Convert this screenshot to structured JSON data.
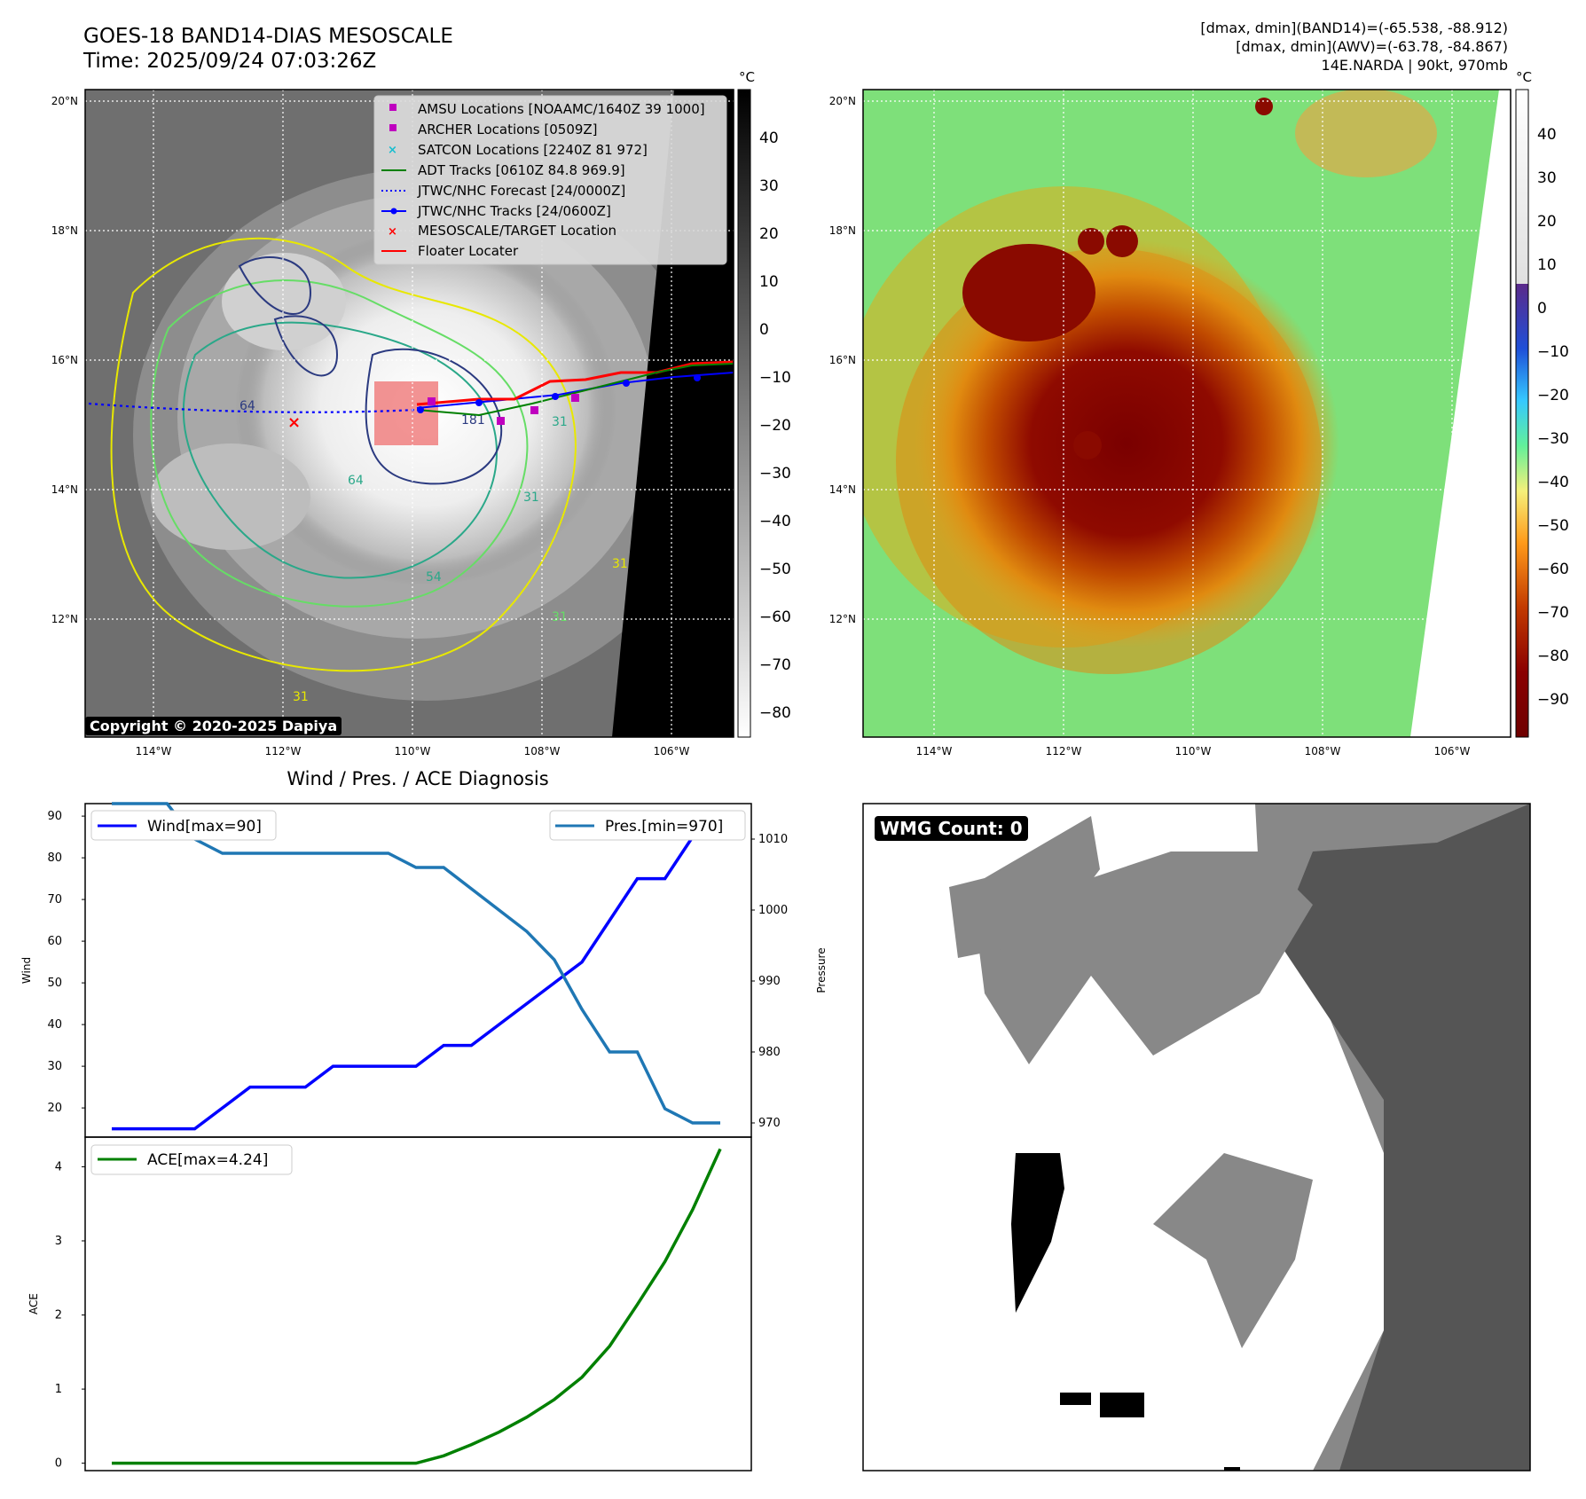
{
  "header": {
    "title_line1": "GOES-18 BAND14-DIAS MESOSCALE",
    "title_line2": "Time: 2025/09/24 07:03:26Z",
    "stats_line1": "[dmax, dmin](BAND14)=(-65.538, -88.912)",
    "stats_line2": "[dmax, dmin](AWV)=(-63.78, -84.867)",
    "stats_line3": "14E.NARDA | 90kt, 970mb"
  },
  "map_panel_ir": {
    "lat_labels": [
      "20°N",
      "18°N",
      "16°N",
      "14°N",
      "12°N"
    ],
    "lon_labels": [
      "114°W",
      "112°W",
      "110°W",
      "108°W",
      "106°W"
    ],
    "colorbar_unit": "°C",
    "colorbar_ticks": [
      "40",
      "30",
      "20",
      "10",
      "0",
      "−10",
      "−20",
      "−30",
      "−40",
      "−50",
      "−60",
      "−70",
      "−80"
    ],
    "copyright": "Copyright © 2020-2025 Dapiya",
    "contour_labels": [
      "64",
      "64",
      "31",
      "31",
      "31",
      "31",
      "31",
      "181",
      "54"
    ],
    "legend": [
      {
        "label": "AMSU Locations [NOAAMC/1640Z 39 1000]",
        "marker": "square",
        "color": "#bf00bf"
      },
      {
        "label": "ARCHER Locations [0509Z]",
        "marker": "square",
        "color": "#bf00bf"
      },
      {
        "label": "SATCON Locations [2240Z 81 972]",
        "marker": "x",
        "color": "#17becf"
      },
      {
        "label": "ADT Tracks [0610Z 84.8 969.9]",
        "marker": "line",
        "color": "#008000"
      },
      {
        "label": "JTWC/NHC Forecast [24/0000Z]",
        "marker": "dotted",
        "color": "#0000ff"
      },
      {
        "label": "JTWC/NHC Tracks [24/0600Z]",
        "marker": "line-dot",
        "color": "#0000ff"
      },
      {
        "label": "MESOSCALE/TARGET Location",
        "marker": "x",
        "color": "#ff0000"
      },
      {
        "label": "Floater Locater",
        "marker": "line",
        "color": "#ff0000"
      }
    ]
  },
  "map_panel_awv": {
    "lat_labels": [
      "20°N",
      "18°N",
      "16°N",
      "14°N",
      "12°N"
    ],
    "lon_labels": [
      "114°W",
      "112°W",
      "110°W",
      "108°W",
      "106°W"
    ],
    "colorbar_unit": "°C",
    "colorbar_ticks": [
      "40",
      "30",
      "20",
      "10",
      "0",
      "−10",
      "−20",
      "−30",
      "−40",
      "−50",
      "−60",
      "−70",
      "−80",
      "−90"
    ]
  },
  "wmg_panel": {
    "badge": "WMG Count: 0"
  },
  "colors": {
    "wind": "#0000ff",
    "pressure": "#1f77b4",
    "ace": "#008000",
    "legend_marker": "#bf00bf",
    "target": "#ff0000"
  },
  "chart_data": [
    {
      "type": "line",
      "title": "Wind / Pres. / ACE Diagnosis",
      "ylabel": "Wind",
      "ylabel_right": "Pressure",
      "ylim": [
        13,
        93
      ],
      "ylim_right": [
        968,
        1015
      ],
      "yticks": [
        20,
        30,
        40,
        50,
        60,
        70,
        80,
        90
      ],
      "yticks_right": [
        970,
        980,
        990,
        1000,
        1010
      ],
      "x": [
        0,
        1,
        2,
        3,
        4,
        5,
        6,
        7,
        8,
        9,
        10,
        11,
        12,
        13,
        14,
        15,
        16,
        17,
        18,
        19,
        20,
        21,
        22
      ],
      "series": [
        {
          "name": "Wind[max=90]",
          "axis": "left",
          "values": [
            15,
            15,
            15,
            15,
            20,
            25,
            25,
            25,
            30,
            30,
            30,
            30,
            35,
            35,
            40,
            45,
            50,
            55,
            65,
            75,
            75,
            85,
            90
          ]
        },
        {
          "name": "Pres.[min=970]",
          "axis": "right",
          "values": [
            1015,
            1015,
            1015,
            1010,
            1008,
            1008,
            1008,
            1008,
            1008,
            1008,
            1008,
            1006,
            1006,
            1003,
            1000,
            997,
            993,
            986,
            980,
            980,
            972,
            970,
            970
          ]
        }
      ]
    },
    {
      "type": "line",
      "ylabel": "ACE",
      "ylim": [
        -0.1,
        4.4
      ],
      "yticks": [
        0,
        1,
        2,
        3,
        4
      ],
      "x": [
        0,
        1,
        2,
        3,
        4,
        5,
        6,
        7,
        8,
        9,
        10,
        11,
        12,
        13,
        14,
        15,
        16,
        17,
        18,
        19,
        20,
        21,
        22
      ],
      "series": [
        {
          "name": "ACE[max=4.24]",
          "values": [
            0,
            0,
            0,
            0,
            0,
            0,
            0,
            0,
            0,
            0,
            0,
            0,
            0.1,
            0.25,
            0.42,
            0.62,
            0.86,
            1.16,
            1.58,
            2.14,
            2.72,
            3.42,
            4.24
          ]
        }
      ]
    }
  ]
}
